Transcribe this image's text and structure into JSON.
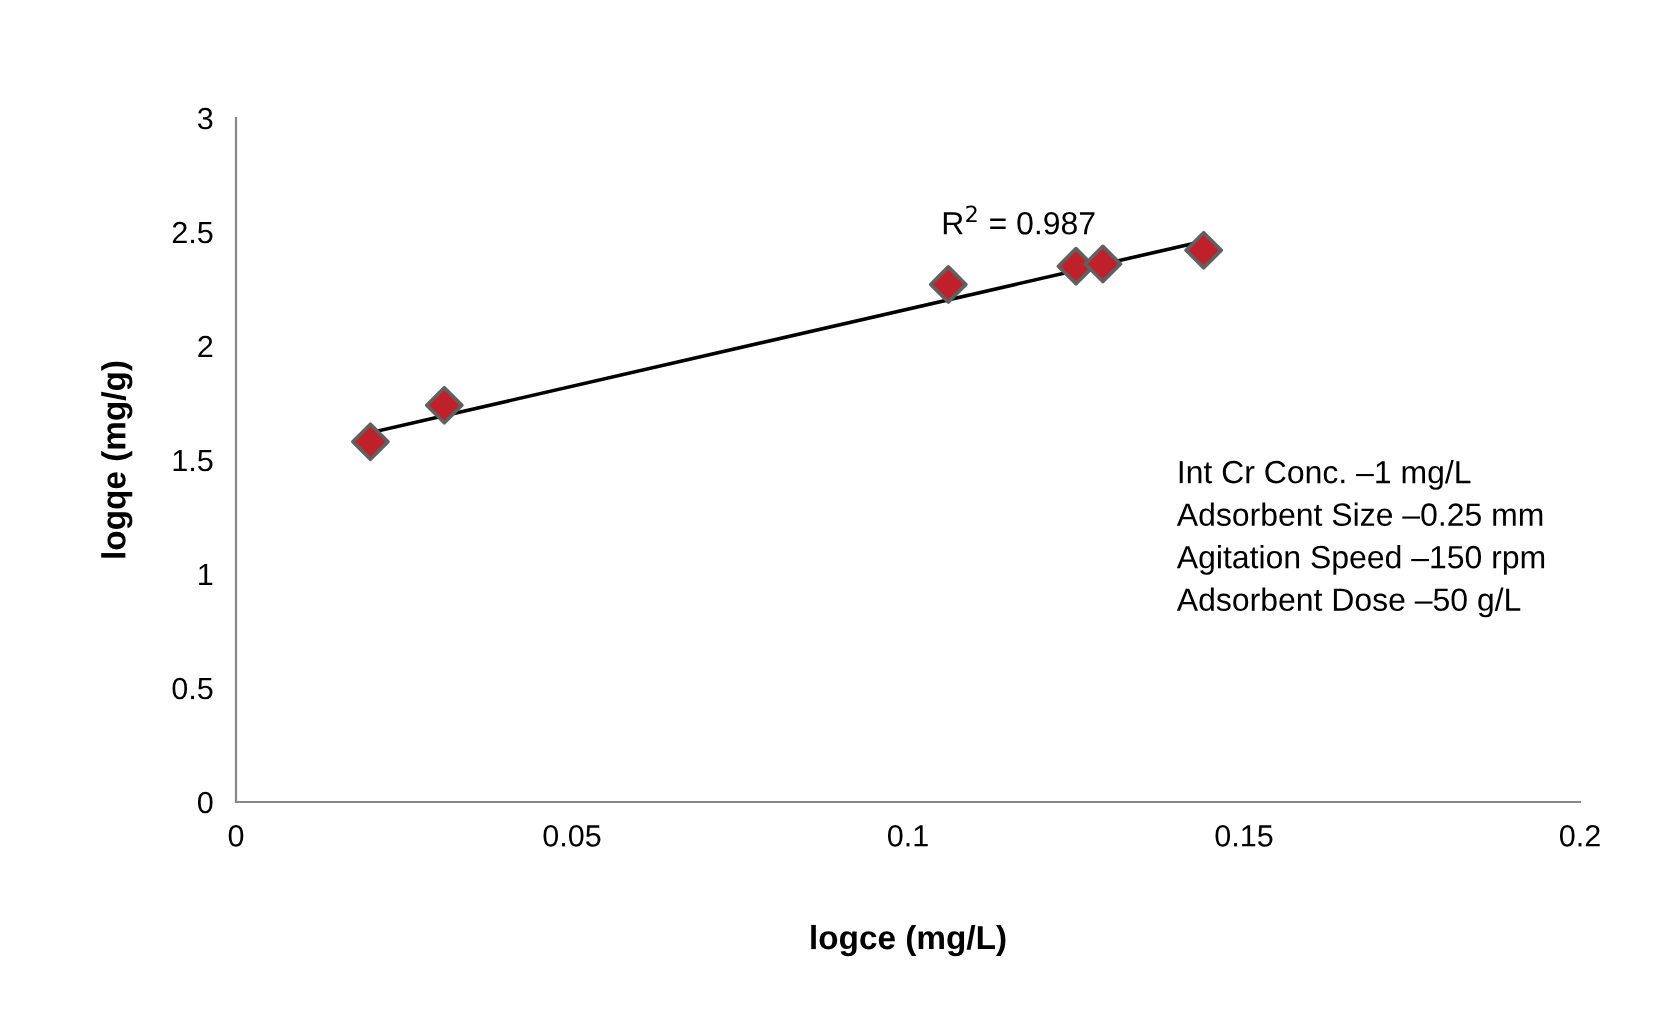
{
  "chart_data": {
    "type": "scatter",
    "xlabel": "logce (mg/L)",
    "ylabel": "logqe (mg/g)",
    "xlim": [
      0,
      0.2
    ],
    "xticks": [
      0,
      0.05,
      0.1,
      0.15,
      0.2
    ],
    "ylim": [
      0,
      3
    ],
    "yticks": [
      0,
      0.5,
      1,
      1.5,
      2,
      2.5,
      3
    ],
    "grid": false,
    "legend": false,
    "series": [
      {
        "marker": "diamond",
        "color": "#c0202a",
        "x": [
          0.02,
          0.031,
          0.106,
          0.125,
          0.129,
          0.144
        ],
        "values": [
          1.58,
          1.74,
          2.27,
          2.35,
          2.36,
          2.42
        ]
      },
      {
        "type": "line",
        "color": "#000000",
        "x": [
          0.02,
          0.144
        ],
        "values": [
          1.62,
          2.46
        ]
      }
    ],
    "annotations": [
      {
        "text": "R$^{2}$ = 0.987",
        "x": 0.128,
        "y": 2.46
      },
      "Int Cr Conc. –1 mg/L\nAdsorbent Size –0.25 mm\nAgitation Speed –150 rpm\nAdsorbent Dose –50 g/L"
    ]
  }
}
